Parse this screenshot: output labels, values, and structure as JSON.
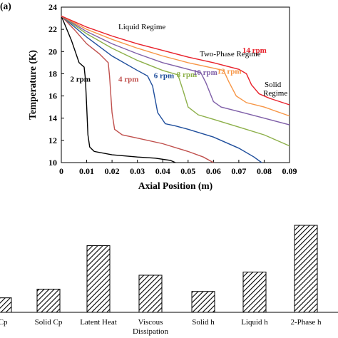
{
  "panel_label": "(a)",
  "chart_data": [
    {
      "type": "line",
      "xlabel": "Axial Position (m)",
      "ylabel": "Temperature (K)",
      "xlim": [
        0,
        0.09
      ],
      "ylim": [
        10,
        24
      ],
      "x_ticks": [
        "0",
        "0.01",
        "0.02",
        "0.03",
        "0.04",
        "0.05",
        "0.06",
        "0.07",
        "0.08",
        "0.09"
      ],
      "y_ticks": [
        "10",
        "12",
        "14",
        "16",
        "18",
        "20",
        "22",
        "24"
      ],
      "grid": false,
      "annotations": [
        "Liquid Regime",
        "Two-Phase Regime",
        "Solid",
        "Regime"
      ],
      "series": [
        {
          "name": "2 rpm",
          "color": "#000000",
          "points": [
            [
              0,
              23.2
            ],
            [
              0.004,
              21.0
            ],
            [
              0.007,
              19.0
            ],
            [
              0.009,
              18.6
            ],
            [
              0.0095,
              17.5
            ],
            [
              0.01,
              15.0
            ],
            [
              0.0105,
              12.5
            ],
            [
              0.0112,
              11.4
            ],
            [
              0.013,
              11.0
            ],
            [
              0.02,
              10.7
            ],
            [
              0.03,
              10.5
            ],
            [
              0.037,
              10.4
            ],
            [
              0.043,
              10.2
            ],
            [
              0.045,
              10.0
            ]
          ]
        },
        {
          "name": "4 rpm",
          "color": "#c0504d",
          "points": [
            [
              0,
              23.2
            ],
            [
              0.005,
              22.0
            ],
            [
              0.01,
              20.7
            ],
            [
              0.015,
              19.8
            ],
            [
              0.0185,
              19.0
            ],
            [
              0.019,
              17.8
            ],
            [
              0.02,
              14.5
            ],
            [
              0.021,
              13.0
            ],
            [
              0.024,
              12.5
            ],
            [
              0.03,
              12.2
            ],
            [
              0.04,
              11.7
            ],
            [
              0.05,
              11.0
            ],
            [
              0.056,
              10.5
            ],
            [
              0.06,
              10.0
            ]
          ]
        },
        {
          "name": "6 rpm",
          "color": "#1f4e9c",
          "points": [
            [
              0,
              23.2
            ],
            [
              0.01,
              21.3
            ],
            [
              0.02,
              19.6
            ],
            [
              0.03,
              18.3
            ],
            [
              0.034,
              17.8
            ],
            [
              0.036,
              16.9
            ],
            [
              0.038,
              14.5
            ],
            [
              0.041,
              13.5
            ],
            [
              0.045,
              13.3
            ],
            [
              0.05,
              13.0
            ],
            [
              0.06,
              12.3
            ],
            [
              0.07,
              11.3
            ],
            [
              0.076,
              10.5
            ],
            [
              0.079,
              10.0
            ]
          ]
        },
        {
          "name": "8 rpm",
          "color": "#8db04a",
          "points": [
            [
              0,
              23.2
            ],
            [
              0.01,
              21.6
            ],
            [
              0.02,
              20.3
            ],
            [
              0.03,
              19.2
            ],
            [
              0.04,
              18.3
            ],
            [
              0.046,
              17.9
            ],
            [
              0.048,
              16.5
            ],
            [
              0.05,
              15.0
            ],
            [
              0.054,
              14.3
            ],
            [
              0.06,
              13.9
            ],
            [
              0.07,
              13.2
            ],
            [
              0.08,
              12.5
            ],
            [
              0.09,
              11.5
            ]
          ]
        },
        {
          "name": "10 rpm",
          "color": "#7f5fa8",
          "points": [
            [
              0,
              23.2
            ],
            [
              0.01,
              21.8
            ],
            [
              0.02,
              20.7
            ],
            [
              0.03,
              19.8
            ],
            [
              0.04,
              19.0
            ],
            [
              0.05,
              18.4
            ],
            [
              0.055,
              18.1
            ],
            [
              0.057,
              17.2
            ],
            [
              0.06,
              15.5
            ],
            [
              0.063,
              15.0
            ],
            [
              0.07,
              14.6
            ],
            [
              0.08,
              14.0
            ],
            [
              0.09,
              13.4
            ]
          ]
        },
        {
          "name": "12 rpm",
          "color": "#f79646",
          "points": [
            [
              0,
              23.2
            ],
            [
              0.01,
              22.0
            ],
            [
              0.02,
              21.1
            ],
            [
              0.03,
              20.3
            ],
            [
              0.04,
              19.6
            ],
            [
              0.05,
              19.0
            ],
            [
              0.06,
              18.5
            ],
            [
              0.064,
              18.3
            ],
            [
              0.066,
              17.3
            ],
            [
              0.069,
              16.0
            ],
            [
              0.073,
              15.4
            ],
            [
              0.08,
              15.0
            ],
            [
              0.09,
              14.2
            ]
          ]
        },
        {
          "name": "14 rpm",
          "color": "#e8202a",
          "points": [
            [
              0,
              23.2
            ],
            [
              0.01,
              22.2
            ],
            [
              0.02,
              21.4
            ],
            [
              0.03,
              20.7
            ],
            [
              0.04,
              20.1
            ],
            [
              0.05,
              19.5
            ],
            [
              0.06,
              19.0
            ],
            [
              0.07,
              18.4
            ],
            [
              0.073,
              18.0
            ],
            [
              0.075,
              17.0
            ],
            [
              0.078,
              16.2
            ],
            [
              0.082,
              15.8
            ],
            [
              0.09,
              15.2
            ]
          ]
        }
      ]
    },
    {
      "type": "bar",
      "categories": [
        "d Cp",
        "Solid Cp",
        "Latent Heat",
        "Viscous\nDissipation",
        "Solid h",
        "Liquid h",
        "2-Phase h"
      ],
      "values": [
        0.5,
        0.8,
        2.3,
        1.28,
        0.72,
        1.39,
        3.0
      ],
      "pattern": "hatched"
    }
  ]
}
